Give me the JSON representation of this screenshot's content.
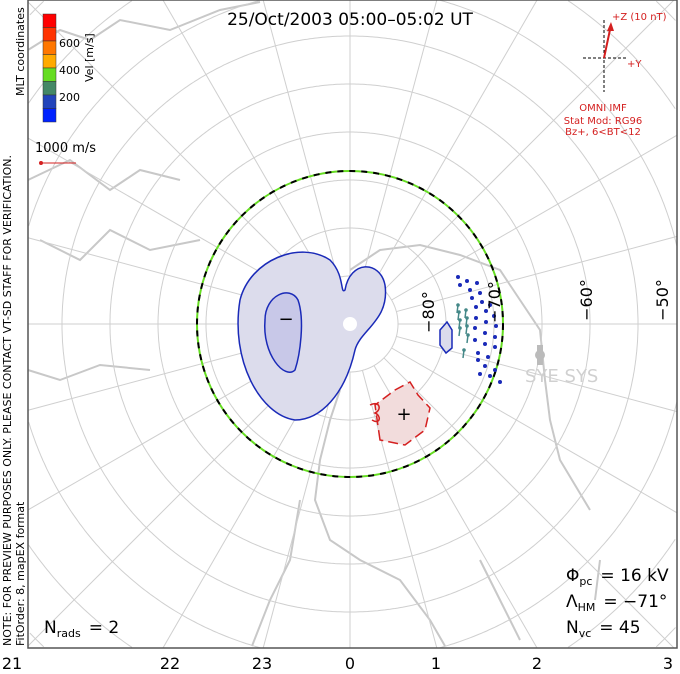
{
  "title": "25/Oct/2003 05:00–05:02 UT",
  "side_note": "NOTE: FOR PREVIEW PURPOSES ONLY. PLEASE CONTACT VT-SD STAFF FOR VERIFICATION.",
  "fit_order": "FitOrder: 8, mapEX format",
  "coords_label": "MLT coordinates",
  "colorbar": {
    "label": "Vel [m/s]",
    "ticks": [
      "600",
      "400",
      "200"
    ],
    "colors": [
      "#ff0000",
      "#ff3300",
      "#ff7700",
      "#ffaa00",
      "#66dd22",
      "#448866",
      "#2244bb",
      "#0022ff"
    ]
  },
  "scale_vector_label": "1000 m/s",
  "imf": {
    "z_label": "+Z (10 nT)",
    "y_label": "+Y",
    "source": "OMNI IMF",
    "stat_mod": "Stat Mod: RG96",
    "condition": "Bz+, 6<BT<12"
  },
  "lat_labels": [
    "−80°",
    "−70°",
    "−60°",
    "−50°"
  ],
  "mlt_labels": [
    "21",
    "22",
    "23",
    "0",
    "1",
    "2",
    "3"
  ],
  "station_label": "SYE SYS",
  "stats": {
    "phi_pc_sym": "Φ",
    "phi_pc_sub": "pc",
    "phi_pc_val": "=  16  kV",
    "lambda_sym": "Λ",
    "lambda_sub": "HM",
    "lambda_val": "=  −71°",
    "nvc_sym": "N",
    "nvc_sub": "vc",
    "nvc_val": "=  45",
    "nrads_sym": "N",
    "nrads_sub": "rads",
    "nrads_val": "=  2"
  },
  "potential_markers": {
    "min": "−",
    "max": "+"
  },
  "colors": {
    "blue_contour": "#1a2ab8",
    "red_contour": "#d42020",
    "coast": "#c8c8c8",
    "hmb_green": "#66dd22"
  }
}
